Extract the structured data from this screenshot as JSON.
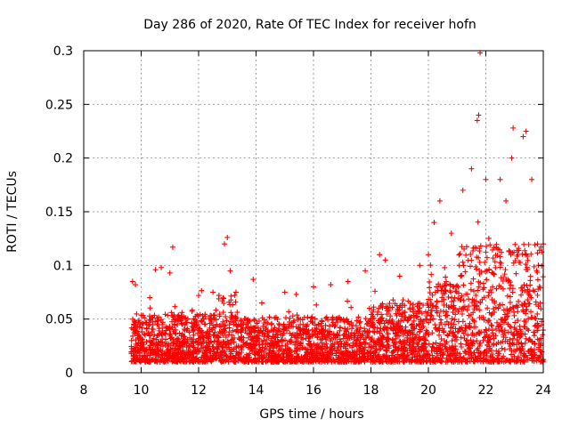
{
  "chart_data": {
    "type": "scatter",
    "title": "Day 286 of 2020, Rate Of TEC Index for receiver hofn",
    "xlabel": "GPS time / hours",
    "ylabel": "ROTI / TECUs",
    "xlim": [
      8,
      24
    ],
    "ylim": [
      0,
      0.3
    ],
    "x_ticks": [
      "8",
      "10",
      "12",
      "14",
      "16",
      "18",
      "20",
      "22",
      "24"
    ],
    "y_ticks": [
      "0",
      "0.05",
      "0.1",
      "0.15",
      "0.2",
      "0.25",
      "0.3"
    ],
    "grid": true,
    "marker": "plus",
    "color": "#ff0000",
    "series": [
      {
        "values": [
          [
            9.7,
            0.085
          ],
          [
            9.8,
            0.082
          ],
          [
            10.3,
            0.07
          ],
          [
            10.5,
            0.096
          ],
          [
            10.7,
            0.098
          ],
          [
            11.0,
            0.093
          ],
          [
            11.1,
            0.117
          ],
          [
            12.0,
            0.072
          ],
          [
            12.5,
            0.075
          ],
          [
            12.9,
            0.12
          ],
          [
            13.0,
            0.126
          ],
          [
            13.1,
            0.095
          ],
          [
            13.3,
            0.075
          ],
          [
            13.9,
            0.087
          ],
          [
            14.2,
            0.065
          ],
          [
            15.0,
            0.075
          ],
          [
            15.4,
            0.073
          ],
          [
            16.0,
            0.08
          ],
          [
            16.6,
            0.082
          ],
          [
            17.2,
            0.085
          ],
          [
            17.8,
            0.095
          ],
          [
            18.3,
            0.11
          ],
          [
            18.5,
            0.105
          ],
          [
            19.0,
            0.09
          ],
          [
            19.7,
            0.1
          ],
          [
            20.0,
            0.11
          ],
          [
            20.2,
            0.14
          ],
          [
            20.4,
            0.16
          ],
          [
            20.8,
            0.13
          ],
          [
            21.2,
            0.17
          ],
          [
            21.5,
            0.19
          ],
          [
            21.7,
            0.235
          ],
          [
            21.75,
            0.24
          ],
          [
            21.8,
            0.298
          ],
          [
            22.0,
            0.18
          ],
          [
            22.5,
            0.18
          ],
          [
            22.7,
            0.16
          ],
          [
            22.9,
            0.2
          ],
          [
            22.95,
            0.228
          ],
          [
            23.3,
            0.22
          ],
          [
            23.4,
            0.225
          ],
          [
            23.6,
            0.18
          ],
          [
            23.8,
            0.12
          ],
          [
            24.0,
            0.12
          ]
        ]
      }
    ]
  }
}
